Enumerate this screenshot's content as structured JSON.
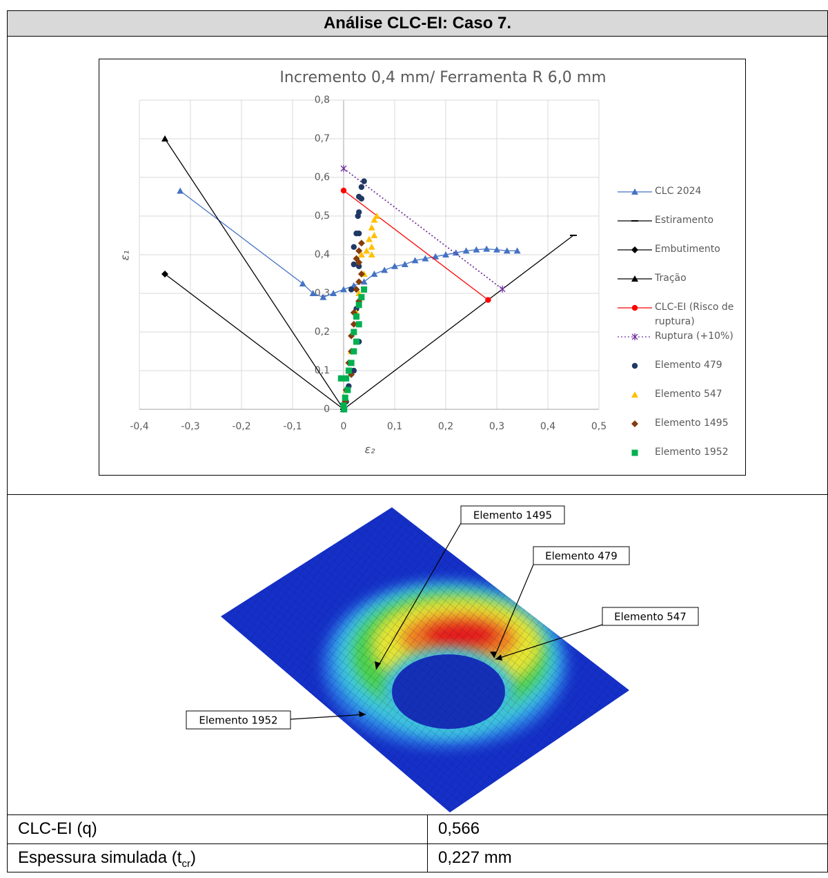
{
  "header": {
    "title": "Análise CLC-EI: Caso 7."
  },
  "chart_data": {
    "type": "scatter",
    "title": "Incremento 0,4 mm/ Ferramenta R 6,0 mm",
    "xlabel": "ε₂",
    "ylabel": "ε₁",
    "xlim": [
      -0.4,
      0.5
    ],
    "ylim": [
      0,
      0.8
    ],
    "xticks": [
      {
        "value": -0.4,
        "label": "-0,4"
      },
      {
        "value": -0.3,
        "label": "-0,3"
      },
      {
        "value": -0.2,
        "label": "-0,2"
      },
      {
        "value": -0.1,
        "label": "-0,1"
      },
      0,
      {
        "value": 0.1,
        "label": "0,1"
      },
      {
        "value": 0.2,
        "label": "0,2"
      },
      {
        "value": 0.3,
        "label": "0,3"
      },
      {
        "value": 0.4,
        "label": "0,4"
      },
      {
        "value": 0.5,
        "label": "0,5"
      }
    ],
    "yticks": [
      0,
      {
        "value": 0.1,
        "label": "0,1"
      },
      {
        "value": 0.2,
        "label": "0,2"
      },
      {
        "value": 0.3,
        "label": "0,3"
      },
      {
        "value": 0.4,
        "label": "0,4"
      },
      {
        "value": 0.5,
        "label": "0,5"
      },
      {
        "value": 0.6,
        "label": "0,6"
      },
      {
        "value": 0.7,
        "label": "0,7"
      },
      {
        "value": 0.8,
        "label": "0,8"
      }
    ],
    "grid": true,
    "legend": "right",
    "series": [
      {
        "name": "CLC 2024",
        "color": "#4472c4",
        "marker": "triangle",
        "line": "solid",
        "x": [
          -0.32,
          -0.08,
          -0.06,
          -0.04,
          -0.02,
          0,
          0.02,
          0.04,
          0.06,
          0.08,
          0.1,
          0.12,
          0.14,
          0.16,
          0.18,
          0.2,
          0.22,
          0.24,
          0.26,
          0.28,
          0.3,
          0.32,
          0.34
        ],
        "values": [
          0.565,
          0.325,
          0.3,
          0.29,
          0.3,
          0.31,
          0.32,
          0.33,
          0.35,
          0.36,
          0.37,
          0.375,
          0.385,
          0.39,
          0.395,
          0.4,
          0.405,
          0.41,
          0.413,
          0.415,
          0.413,
          0.41,
          0.41
        ]
      },
      {
        "name": "Estiramento",
        "color": "#000000",
        "marker": "dash",
        "line": "solid",
        "x": [
          0,
          0.45
        ],
        "values": [
          0,
          0.45
        ]
      },
      {
        "name": "Embutimento",
        "color": "#000000",
        "marker": "diamond",
        "line": "solid",
        "x": [
          0,
          -0.35
        ],
        "values": [
          0,
          0.35
        ]
      },
      {
        "name": "Tração",
        "color": "#000000",
        "marker": "triangle",
        "line": "solid",
        "x": [
          0,
          -0.35
        ],
        "values": [
          0,
          0.7
        ]
      },
      {
        "name": "CLC-EI (Risco de ruptura)",
        "color": "#ff0000",
        "marker": "circle",
        "line": "solid",
        "x": [
          0,
          0.283
        ],
        "values": [
          0.566,
          0.283
        ]
      },
      {
        "name": "Ruptura (+10%)",
        "color": "#7030a0",
        "marker": "star",
        "line": "dotted",
        "x": [
          0,
          0.311
        ],
        "values": [
          0.623,
          0.311
        ]
      },
      {
        "name": "Elemento 479",
        "color": "#203864",
        "marker": "circle",
        "line": "none",
        "x": [
          0.04,
          0.035,
          0.03,
          0.035,
          0.03,
          0.028,
          0.03,
          0.025,
          0.02,
          0.02,
          0.03,
          0.015,
          0.025,
          0.03,
          0.02,
          0.01,
          0.005
        ],
        "values": [
          0.59,
          0.575,
          0.55,
          0.545,
          0.51,
          0.5,
          0.455,
          0.455,
          0.42,
          0.375,
          0.37,
          0.31,
          0.26,
          0.175,
          0.1,
          0.06,
          0.02
        ]
      },
      {
        "name": "Elemento 547",
        "color": "#ffc000",
        "marker": "triangle",
        "line": "none",
        "x": [
          0.065,
          0.06,
          0.055,
          0.06,
          0.05,
          0.055,
          0.045,
          0.055,
          0.035,
          0.04,
          0.03,
          0.025,
          0.02,
          0.015,
          0.01,
          0.005
        ],
        "values": [
          0.5,
          0.49,
          0.47,
          0.45,
          0.44,
          0.42,
          0.41,
          0.4,
          0.4,
          0.35,
          0.3,
          0.25,
          0.2,
          0.15,
          0.1,
          0.05
        ]
      },
      {
        "name": "Elemento 1495",
        "color": "#843c0c",
        "marker": "diamond",
        "line": "none",
        "x": [
          0.035,
          0.03,
          0.025,
          0.03,
          0.035,
          0.03,
          0.025,
          0.03,
          0.02,
          0.02,
          0.015,
          0.015,
          0.01,
          0.015,
          0.005,
          0.003
        ],
        "values": [
          0.43,
          0.41,
          0.39,
          0.38,
          0.35,
          0.33,
          0.31,
          0.28,
          0.25,
          0.22,
          0.19,
          0.15,
          0.12,
          0.09,
          0.05,
          0.02
        ]
      },
      {
        "name": "Elemento 1952",
        "color": "#00b050",
        "marker": "square",
        "line": "none",
        "x": [
          0.04,
          0.035,
          0.03,
          0.025,
          0.03,
          0.02,
          0.025,
          0.02,
          0.015,
          0.01,
          0.005,
          -0.005,
          0.008,
          0.003,
          0,
          0.001
        ],
        "values": [
          0.31,
          0.29,
          0.27,
          0.24,
          0.22,
          0.2,
          0.175,
          0.15,
          0.12,
          0.1,
          0.08,
          0.08,
          0.05,
          0.03,
          0.01,
          0
        ]
      }
    ]
  },
  "figure": {
    "callouts": [
      "Elemento 1495",
      "Elemento 479",
      "Elemento 547",
      "Elemento 1952"
    ]
  },
  "table": {
    "rows": [
      [
        "CLC-EI (q)",
        "0,566"
      ],
      [
        {
          "text": "Espessura simulada (t",
          "sub": "cr",
          "tail": ")"
        },
        "0,227 mm"
      ]
    ]
  }
}
